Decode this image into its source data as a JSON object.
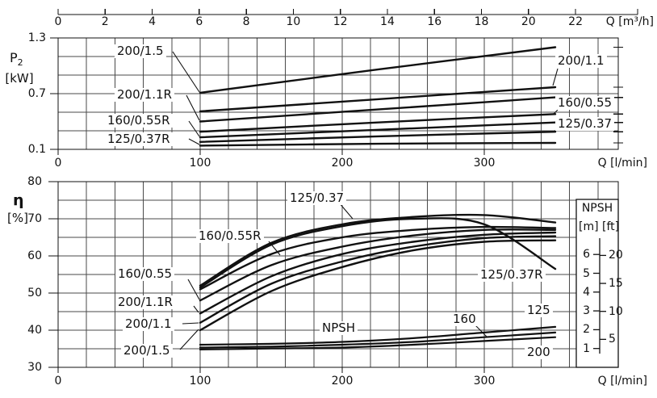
{
  "top_ruler": {
    "label": "Q [m³/h]",
    "ticks": [
      0,
      2,
      4,
      6,
      8,
      10,
      12,
      14,
      16,
      18,
      20,
      22
    ]
  },
  "axis_labels": {
    "p2_main": "P",
    "p2_sub": "2",
    "p2_unit": "[kW]",
    "eta": "η",
    "eta_unit": "[%]",
    "q_lmin": "Q [l/min]"
  },
  "chart_data": [
    {
      "id": "power_input",
      "type": "line",
      "ylabel": "P2 [kW]",
      "xlabel": "Q [l/min]",
      "xlabel_top": "Q [m³/h]",
      "ylim": [
        0.1,
        1.3
      ],
      "yticks": [
        1.3,
        0.7,
        0.1
      ],
      "y_grid_step": 0.2,
      "xticks_lmin": [
        0,
        100,
        200,
        300
      ],
      "xticks_m3h": [
        0,
        2,
        4,
        6,
        8,
        10,
        12,
        14,
        16,
        18,
        20,
        22
      ],
      "x_grid_step_lmin": 20,
      "x_lmin": [
        100,
        225,
        350
      ],
      "series": [
        {
          "name": "200/1.5",
          "values": [
            0.71,
            0.96,
            1.2
          ]
        },
        {
          "name": "200/1.1",
          "values": [
            0.51,
            0.64,
            0.77
          ]
        },
        {
          "name": "200/1.1R",
          "values": [
            0.4,
            0.53,
            0.66
          ]
        },
        {
          "name": "160/0.55",
          "values": [
            0.29,
            0.39,
            0.48
          ]
        },
        {
          "name": "160/0.55R",
          "values": [
            0.23,
            0.31,
            0.39
          ]
        },
        {
          "name": "125/0.37",
          "values": [
            0.18,
            0.24,
            0.29
          ]
        },
        {
          "name": "125/0.37R",
          "values": [
            0.14,
            0.16,
            0.17
          ]
        }
      ]
    },
    {
      "id": "efficiency_npsh",
      "type": "line",
      "ylabel": "η [%]",
      "xlabel": "Q [l/min]",
      "ylim": [
        30,
        80
      ],
      "yticks": [
        80,
        70,
        60,
        50,
        40,
        30
      ],
      "y_grid_step": 5,
      "xticks_lmin": [
        0,
        100,
        200,
        300
      ],
      "x_grid_step_lmin": 20,
      "x_lmin": [
        100,
        150,
        200,
        250,
        300,
        350
      ],
      "series": [
        {
          "name": "125/0.37",
          "values": [
            52,
            63.5,
            68.5,
            70.5,
            71,
            69
          ]
        },
        {
          "name": "125/0.37R",
          "values": [
            51.5,
            63,
            68,
            70,
            68.5,
            56.5
          ]
        },
        {
          "name": "160/0.55R",
          "values": [
            51,
            60.5,
            65,
            67,
            67.8,
            67.5
          ]
        },
        {
          "name": "160/0.55",
          "values": [
            48,
            57.5,
            62.5,
            65.5,
            67,
            67
          ]
        },
        {
          "name": "200/1.1R",
          "values": [
            44.5,
            54.5,
            60.5,
            63.8,
            65.7,
            66.3
          ]
        },
        {
          "name": "200/1.1",
          "values": [
            42,
            52.5,
            58.5,
            62.5,
            64.8,
            65.3
          ]
        },
        {
          "name": "200/1.5",
          "values": [
            40,
            50.5,
            57,
            61.5,
            63.8,
            64.2
          ]
        }
      ],
      "npsh": {
        "label": "NPSH",
        "series": [
          {
            "name": "125",
            "values_m": [
              1.2,
              1.25,
              1.35,
              1.55,
              1.85,
              2.15
            ]
          },
          {
            "name": "160",
            "values_m": [
              1.05,
              1.1,
              1.2,
              1.35,
              1.6,
              1.85
            ]
          },
          {
            "name": "200",
            "values_m": [
              0.95,
              1.0,
              1.05,
              1.2,
              1.4,
              1.6
            ]
          }
        ],
        "axis": {
          "title": "NPSH",
          "m_label": "[m]",
          "ft_label": "[ft]",
          "m_ticks": [
            6,
            5,
            4,
            3,
            2,
            1
          ],
          "ft_ticks": [
            20,
            15,
            10,
            5
          ]
        }
      }
    }
  ],
  "colors": {
    "curve": "#111111",
    "grid": "#4a4a4a",
    "background": "#ffffff"
  }
}
